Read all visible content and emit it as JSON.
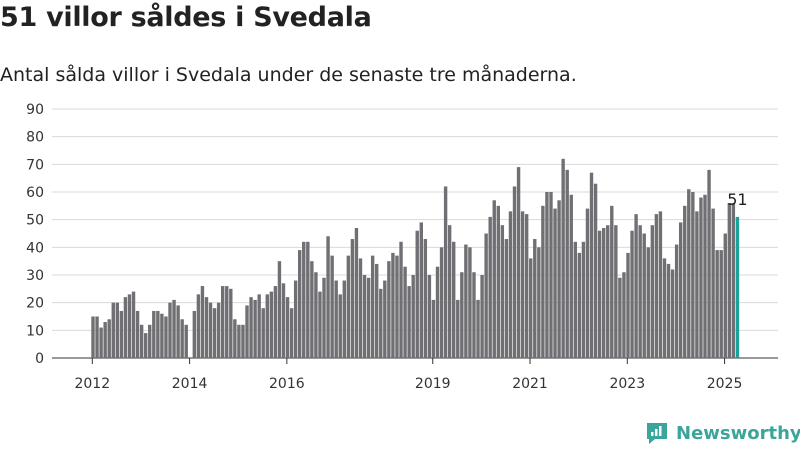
{
  "title": "51 villor såldes i Svedala",
  "subtitle": "Antal sålda villor i Svedala under de senaste tre månaderna.",
  "brand": {
    "name": "Newsworthy",
    "color": "#3aa59a",
    "icon": "newsworthy-chart-icon"
  },
  "chart_data": {
    "type": "bar",
    "ylim": [
      0,
      90
    ],
    "yticks": [
      0,
      10,
      20,
      30,
      40,
      50,
      60,
      70,
      80,
      90
    ],
    "xticks": [
      "2012",
      "2014",
      "2016",
      "2019",
      "2021",
      "2023",
      "2025"
    ],
    "grid": true,
    "bar_color": "#707074",
    "highlight_color": "#1aa39a",
    "annotation": {
      "text": "51",
      "value": 51,
      "last_bar": true
    },
    "values": [
      15,
      15,
      11,
      13,
      14,
      20,
      20,
      17,
      22,
      23,
      24,
      17,
      12,
      9,
      12,
      17,
      17,
      16,
      15,
      20,
      21,
      19,
      14,
      12,
      0,
      17,
      23,
      26,
      22,
      20,
      18,
      20,
      26,
      26,
      25,
      14,
      12,
      12,
      19,
      22,
      21,
      23,
      18,
      23,
      24,
      26,
      35,
      27,
      22,
      18,
      28,
      39,
      42,
      42,
      35,
      31,
      24,
      29,
      44,
      37,
      28,
      23,
      28,
      37,
      43,
      47,
      36,
      30,
      29,
      37,
      34,
      25,
      28,
      35,
      38,
      37,
      42,
      33,
      26,
      30,
      46,
      49,
      43,
      30,
      21,
      33,
      40,
      62,
      48,
      42,
      21,
      31,
      41,
      40,
      31,
      21,
      30,
      45,
      51,
      57,
      55,
      48,
      43,
      53,
      62,
      69,
      53,
      52,
      36,
      43,
      40,
      55,
      60,
      60,
      54,
      57,
      72,
      68,
      59,
      42,
      38,
      42,
      54,
      67,
      63,
      46,
      47,
      48,
      55,
      48,
      29,
      31,
      38,
      46,
      52,
      48,
      45,
      40,
      48,
      52,
      53,
      36,
      34,
      32,
      41,
      49,
      55,
      61,
      60,
      53,
      58,
      59,
      68,
      54,
      39,
      39,
      45,
      56,
      56,
      51
    ]
  }
}
